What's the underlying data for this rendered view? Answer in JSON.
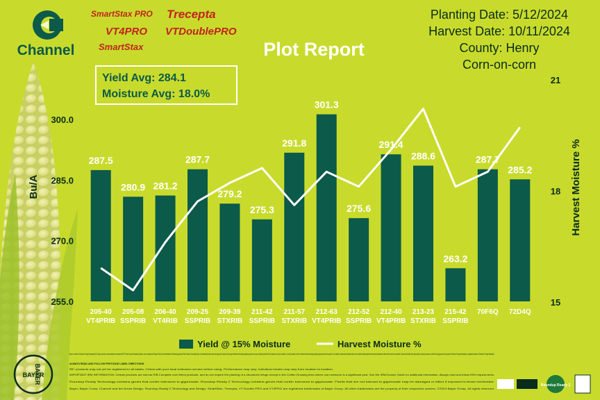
{
  "brand": {
    "name": "Channel",
    "trait_logos": [
      "SmartStax PRO",
      "Trecepta",
      "VT4PRO",
      "VTDoublePRO",
      "SmartStax"
    ],
    "bayer": "BAYER",
    "footer_badge": "Roundup Ready 2"
  },
  "header": {
    "title": "Plot Report",
    "planting_date": "Planting Date: 5/12/2024",
    "harvest_date": "Harvest Date: 10/11/2024",
    "county": "County: Henry",
    "rotation": "Corn-on-corn"
  },
  "summary": {
    "yield_avg": "Yield Avg: 284.1",
    "moisture_avg": "Moisture Avg: 18.0%"
  },
  "colors": {
    "background": "#c8db2c",
    "bar": "#0b5a4a",
    "line": "#ffffff",
    "text": "#0a2c1c"
  },
  "chart_data": {
    "type": "bar",
    "title": "Plot Report",
    "xlabel": "",
    "ylabel": "Bu/A",
    "y2label": "Harvest Moisture %",
    "categories": [
      [
        "205-40",
        "VT4PRIB"
      ],
      [
        "205-08",
        "SSPRIB"
      ],
      [
        "206-40",
        "VT4RIB"
      ],
      [
        "209-25",
        "SSPRIB"
      ],
      [
        "209-39",
        "STXRIB"
      ],
      [
        "211-42",
        "SSPRIB"
      ],
      [
        "211-57",
        "STXRIB"
      ],
      [
        "212-63",
        "VT4PRIB"
      ],
      [
        "212-52",
        "SSPRIB"
      ],
      [
        "212-40",
        "VT4PRIB"
      ],
      [
        "213-23",
        "STXRIB"
      ],
      [
        "215-42",
        "SSPRIB"
      ],
      [
        "70F6Q",
        ""
      ],
      [
        "72D4Q",
        ""
      ]
    ],
    "ylim": [
      255,
      310
    ],
    "yticks": [
      255.0,
      270.0,
      285.0,
      300.0
    ],
    "y2lim": [
      15,
      21
    ],
    "y2ticks": [
      15,
      18,
      21
    ],
    "series": [
      {
        "name": "Yield @ 15%  Moisture",
        "kind": "bar",
        "axis": "left",
        "values": [
          287.5,
          280.9,
          281.2,
          287.7,
          279.2,
          275.3,
          291.8,
          301.3,
          275.6,
          291.4,
          288.6,
          263.2,
          287.7,
          285.2
        ],
        "labels": [
          "287.5",
          "280.9",
          "281.2",
          "287.7",
          "279.2",
          "275.3",
          "291.8",
          "301.3",
          "275.6",
          "291.4",
          "288.6",
          "263.2",
          "287.7",
          "285.2"
        ]
      },
      {
        "name": "Harvest Moisture %",
        "kind": "line",
        "axis": "right",
        "values": [
          15.9,
          15.3,
          16.6,
          17.7,
          18.2,
          18.6,
          17.6,
          18.5,
          18.1,
          19.1,
          20.2,
          18.1,
          18.5,
          19.7
        ]
      }
    ],
    "legend": "bottom"
  },
  "footer": {
    "disclaimer": "Bayer is a member of Excellence Through Stewardship (ETS). Bayer products are commercialized in accordance with ETS Product Launch Stewardship Guidance, and in compliance with Bayer's Policy for Commercialization of Biotechnology-Derived Plant Products in Commodity Crops. Commercialized products have been approved for import into key export markets with functioning regulatory systems. Any crop or material produced from this product can only be exported to, or used, processed or sold in countries where all necessary regulatory approvals have been granted. It is a violation of national and international law to move material containing biotech traits across boundaries into nations where import is not permitted. Growers should talk to their grain handler or product purchaser to confirm their buying position for this product. Excellence Through Stewardship is a registered trademark of Excellence Through Stewardship.",
    "notice": "ALWAYS READ AND FOLLOW PESTICIDE LABEL DIRECTIONS.",
    "results": "RE: products may not yet be registered in all states. Check with your local extension service before using. Performance may vary. Individual results may vary from location to location.",
    "irm": "IMPORTANT IRM INFORMATION: Certain products are sold as RIB Complete corn blend products, and do not require the planting of a structured refuge except in the Cotton-Growing Area where corn earworm is a significant pest. See the IRM/Grower Guide for additional information. Always read and follow IRM requirements.",
    "roundup": "Roundup Ready Technology contains genes that confer tolerance to glyphosate. Roundup Ready 2 Technology contains genes that confer tolerance to glyphosate. Plants that are not tolerant to glyphosate may be damaged or killed if exposed to those herbicides.",
    "trademarks": "Bayer, Bayer Cross, Channel and the Arrow Design, Roundup Ready 2 Technology and Design, SmartStax, Trecepta, VT Double PRO and VT4PRO are registered trademarks of Bayer Group. All other trademarks are the property of their respective owners. ©2024 Bayer Group. All rights reserved."
  }
}
